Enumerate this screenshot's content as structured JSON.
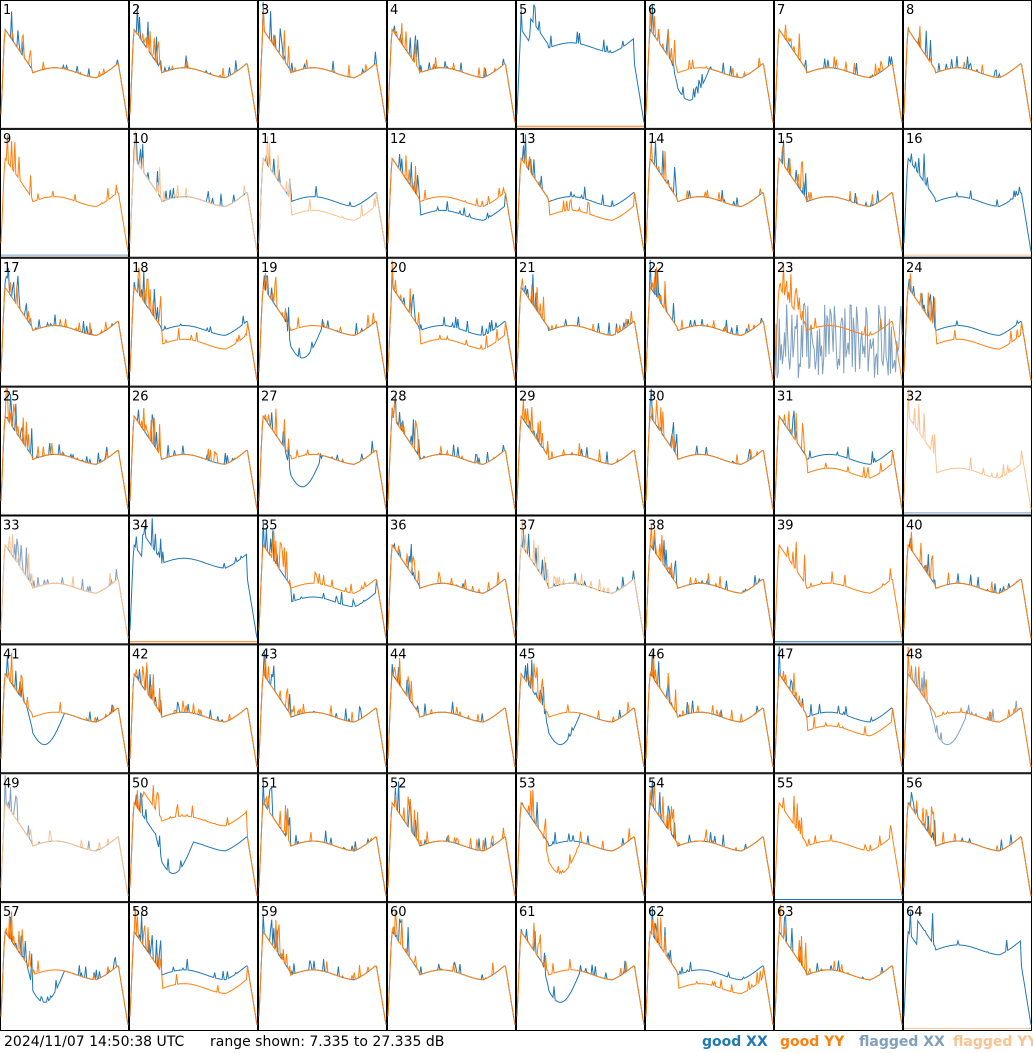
{
  "chart_data": {
    "type": "line",
    "layout": "8x8 small multiples, one panel per antenna",
    "y_units": "dB",
    "ylim": [
      7.335,
      27.335
    ],
    "colors": {
      "good_xx": "#1f77b4",
      "good_yy": "#ff7f0e",
      "flagged_xx": "#7f9fbf",
      "flagged_yy": "#f9c290"
    },
    "panels": [
      {
        "label": "1",
        "xx": "good",
        "yy": "good",
        "xx_shape": "normal",
        "yy_shape": "normal"
      },
      {
        "label": "2",
        "xx": "good",
        "yy": "good",
        "xx_shape": "normal",
        "yy_shape": "normal"
      },
      {
        "label": "3",
        "xx": "good",
        "yy": "good",
        "xx_shape": "normal",
        "yy_shape": "normal"
      },
      {
        "label": "4",
        "xx": "good",
        "yy": "good",
        "xx_shape": "normal",
        "yy_shape": "normal"
      },
      {
        "label": "5",
        "xx": "good",
        "yy": "good",
        "xx_shape": "high",
        "yy_shape": "dead"
      },
      {
        "label": "6",
        "xx": "good",
        "yy": "good",
        "xx_shape": "dip",
        "yy_shape": "normal"
      },
      {
        "label": "7",
        "xx": "good",
        "yy": "good",
        "xx_shape": "normal",
        "yy_shape": "normal"
      },
      {
        "label": "8",
        "xx": "good",
        "yy": "good",
        "xx_shape": "normal",
        "yy_shape": "normal"
      },
      {
        "label": "9",
        "xx": "flagged",
        "yy": "good",
        "xx_shape": "dead",
        "yy_shape": "normal"
      },
      {
        "label": "10",
        "xx": "good",
        "yy": "flagged",
        "xx_shape": "normal",
        "yy_shape": "normal"
      },
      {
        "label": "11",
        "xx": "good",
        "yy": "flagged",
        "xx_shape": "normal",
        "yy_shape": "low"
      },
      {
        "label": "12",
        "xx": "good",
        "yy": "good",
        "xx_shape": "low",
        "yy_shape": "normal"
      },
      {
        "label": "13",
        "xx": "good",
        "yy": "good",
        "xx_shape": "normal",
        "yy_shape": "low"
      },
      {
        "label": "14",
        "xx": "good",
        "yy": "good",
        "xx_shape": "normal",
        "yy_shape": "normal"
      },
      {
        "label": "15",
        "xx": "good",
        "yy": "good",
        "xx_shape": "normal",
        "yy_shape": "normal"
      },
      {
        "label": "16",
        "xx": "good",
        "yy": "flagged",
        "xx_shape": "normal",
        "yy_shape": "dead"
      },
      {
        "label": "17",
        "xx": "good",
        "yy": "good",
        "xx_shape": "normal",
        "yy_shape": "normal"
      },
      {
        "label": "18",
        "xx": "good",
        "yy": "good",
        "xx_shape": "normal",
        "yy_shape": "low"
      },
      {
        "label": "19",
        "xx": "good",
        "yy": "good",
        "xx_shape": "dip",
        "yy_shape": "normal"
      },
      {
        "label": "20",
        "xx": "good",
        "yy": "good",
        "xx_shape": "normal",
        "yy_shape": "low"
      },
      {
        "label": "21",
        "xx": "good",
        "yy": "good",
        "xx_shape": "normal",
        "yy_shape": "normal"
      },
      {
        "label": "22",
        "xx": "good",
        "yy": "good",
        "xx_shape": "normal",
        "yy_shape": "normal"
      },
      {
        "label": "23",
        "xx": "flagged",
        "yy": "good",
        "xx_shape": "noise",
        "yy_shape": "normal"
      },
      {
        "label": "24",
        "xx": "good",
        "yy": "good",
        "xx_shape": "normal",
        "yy_shape": "low"
      },
      {
        "label": "25",
        "xx": "good",
        "yy": "good",
        "xx_shape": "normal",
        "yy_shape": "normal"
      },
      {
        "label": "26",
        "xx": "good",
        "yy": "good",
        "xx_shape": "normal",
        "yy_shape": "normal"
      },
      {
        "label": "27",
        "xx": "good",
        "yy": "good",
        "xx_shape": "dip",
        "yy_shape": "normal"
      },
      {
        "label": "28",
        "xx": "good",
        "yy": "good",
        "xx_shape": "normal",
        "yy_shape": "normal"
      },
      {
        "label": "29",
        "xx": "good",
        "yy": "good",
        "xx_shape": "normal",
        "yy_shape": "normal"
      },
      {
        "label": "30",
        "xx": "good",
        "yy": "good",
        "xx_shape": "normal",
        "yy_shape": "normal"
      },
      {
        "label": "31",
        "xx": "good",
        "yy": "good",
        "xx_shape": "normal",
        "yy_shape": "low"
      },
      {
        "label": "32",
        "xx": "flagged",
        "yy": "flagged",
        "xx_shape": "dead",
        "yy_shape": "low"
      },
      {
        "label": "33",
        "xx": "flagged",
        "yy": "flagged",
        "xx_shape": "normal",
        "yy_shape": "normal"
      },
      {
        "label": "34",
        "xx": "good",
        "yy": "good",
        "xx_shape": "high",
        "yy_shape": "dead"
      },
      {
        "label": "35",
        "xx": "good",
        "yy": "good",
        "xx_shape": "low",
        "yy_shape": "normal"
      },
      {
        "label": "36",
        "xx": "good",
        "yy": "good",
        "xx_shape": "normal",
        "yy_shape": "normal"
      },
      {
        "label": "37",
        "xx": "good",
        "yy": "flagged",
        "xx_shape": "normal",
        "yy_shape": "normal"
      },
      {
        "label": "38",
        "xx": "good",
        "yy": "good",
        "xx_shape": "normal",
        "yy_shape": "normal"
      },
      {
        "label": "39",
        "xx": "good",
        "yy": "good",
        "xx_shape": "dead",
        "yy_shape": "normal"
      },
      {
        "label": "40",
        "xx": "good",
        "yy": "good",
        "xx_shape": "normal",
        "yy_shape": "normal"
      },
      {
        "label": "41",
        "xx": "good",
        "yy": "good",
        "xx_shape": "dip",
        "yy_shape": "normal"
      },
      {
        "label": "42",
        "xx": "good",
        "yy": "good",
        "xx_shape": "normal",
        "yy_shape": "normal"
      },
      {
        "label": "43",
        "xx": "good",
        "yy": "good",
        "xx_shape": "normal",
        "yy_shape": "normal"
      },
      {
        "label": "44",
        "xx": "good",
        "yy": "good",
        "xx_shape": "normal",
        "yy_shape": "normal"
      },
      {
        "label": "45",
        "xx": "good",
        "yy": "good",
        "xx_shape": "dip",
        "yy_shape": "normal"
      },
      {
        "label": "46",
        "xx": "good",
        "yy": "good",
        "xx_shape": "normal",
        "yy_shape": "normal"
      },
      {
        "label": "47",
        "xx": "good",
        "yy": "good",
        "xx_shape": "normal",
        "yy_shape": "low"
      },
      {
        "label": "48",
        "xx": "flagged",
        "yy": "good",
        "xx_shape": "dip",
        "yy_shape": "normal"
      },
      {
        "label": "49",
        "xx": "flagged",
        "yy": "flagged",
        "xx_shape": "normal",
        "yy_shape": "normal"
      },
      {
        "label": "50",
        "xx": "good",
        "yy": "good",
        "xx_shape": "dip",
        "yy_shape": "high"
      },
      {
        "label": "51",
        "xx": "good",
        "yy": "good",
        "xx_shape": "normal",
        "yy_shape": "normal"
      },
      {
        "label": "52",
        "xx": "good",
        "yy": "good",
        "xx_shape": "normal",
        "yy_shape": "normal"
      },
      {
        "label": "53",
        "xx": "good",
        "yy": "good",
        "xx_shape": "normal",
        "yy_shape": "dip"
      },
      {
        "label": "54",
        "xx": "good",
        "yy": "good",
        "xx_shape": "normal",
        "yy_shape": "normal"
      },
      {
        "label": "55",
        "xx": "good",
        "yy": "good",
        "xx_shape": "dead",
        "yy_shape": "normal"
      },
      {
        "label": "56",
        "xx": "good",
        "yy": "good",
        "xx_shape": "normal",
        "yy_shape": "normal"
      },
      {
        "label": "57",
        "xx": "good",
        "yy": "good",
        "xx_shape": "dip",
        "yy_shape": "normal"
      },
      {
        "label": "58",
        "xx": "good",
        "yy": "good",
        "xx_shape": "normal",
        "yy_shape": "low"
      },
      {
        "label": "59",
        "xx": "good",
        "yy": "good",
        "xx_shape": "normal",
        "yy_shape": "normal"
      },
      {
        "label": "60",
        "xx": "good",
        "yy": "good",
        "xx_shape": "normal",
        "yy_shape": "normal"
      },
      {
        "label": "61",
        "xx": "good",
        "yy": "good",
        "xx_shape": "dip",
        "yy_shape": "normal"
      },
      {
        "label": "62",
        "xx": "good",
        "yy": "good",
        "xx_shape": "normal",
        "yy_shape": "low"
      },
      {
        "label": "63",
        "xx": "good",
        "yy": "good",
        "xx_shape": "normal",
        "yy_shape": "normal"
      },
      {
        "label": "64",
        "xx": "good",
        "yy": "flagged",
        "xx_shape": "high",
        "yy_shape": "dead"
      }
    ]
  },
  "footer": {
    "timestamp": "2024/11/07 14:50:38 UTC",
    "range_text": "range shown: 7.335 to 27.335 dB"
  },
  "legend": [
    {
      "label": "good XX",
      "color": "#1f77b4"
    },
    {
      "label": "good YY",
      "color": "#ff7f0e"
    },
    {
      "label": "flagged XX",
      "color": "#7f9fbf"
    },
    {
      "label": "flagged YY",
      "color": "#f9c290"
    }
  ]
}
